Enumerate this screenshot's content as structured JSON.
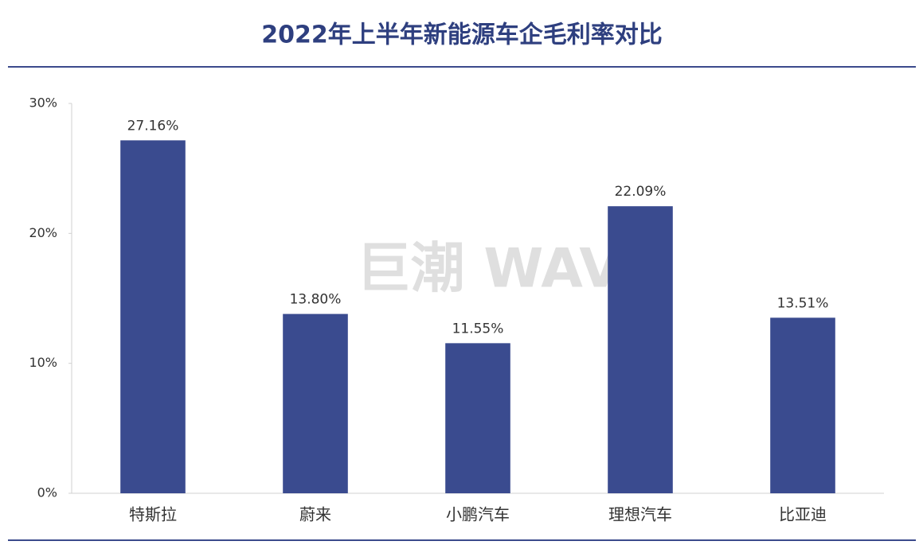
{
  "chart_data": {
    "type": "bar",
    "title": "2022年上半年新能源车企毛利率对比",
    "watermark": "巨潮 WAVE",
    "categories": [
      "特斯拉",
      "蔚来",
      "小鹏汽车",
      "理想汽车",
      "比亚迪"
    ],
    "values": [
      27.16,
      13.8,
      11.55,
      22.09,
      13.51
    ],
    "value_labels": [
      "27.16%",
      "13.80%",
      "11.55%",
      "22.09%",
      "13.51%"
    ],
    "color": "#3a4b8f",
    "ylim": [
      0,
      30
    ],
    "yticks": [
      {
        "value": 0,
        "label": "0%"
      },
      {
        "value": 10,
        "label": "10%"
      },
      {
        "value": 20,
        "label": "20%"
      },
      {
        "value": 30,
        "label": "30%"
      }
    ],
    "grid": false
  }
}
